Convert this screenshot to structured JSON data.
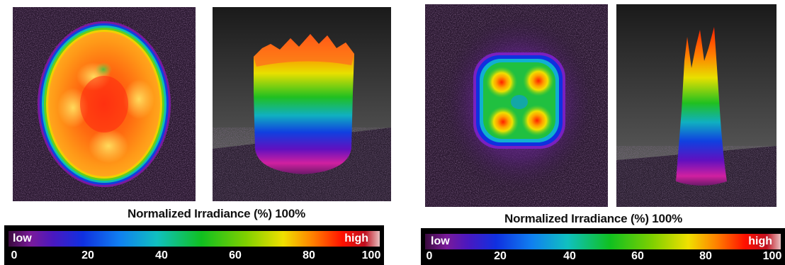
{
  "left": {
    "title": "Normalized Irradiance (%)  100%",
    "colorbar": {
      "low_label": "low",
      "high_label": "high",
      "ticks": [
        "0",
        "20",
        "40",
        "60",
        "80",
        "100"
      ]
    }
  },
  "right": {
    "title": "Normalized Irradiance (%)  100%",
    "colorbar": {
      "low_label": "low",
      "high_label": "high",
      "ticks": [
        "0",
        "20",
        "40",
        "60",
        "80",
        "100"
      ]
    }
  },
  "colors": {
    "colormap": [
      "#3a0a3e",
      "#7a1a9a",
      "#5a16c0",
      "#1030e0",
      "#1080f0",
      "#10c0c0",
      "#10c020",
      "#80d000",
      "#f0e000",
      "#ff8000",
      "#ff1000",
      "#e8e0e0"
    ],
    "background": "#2a1830"
  }
}
